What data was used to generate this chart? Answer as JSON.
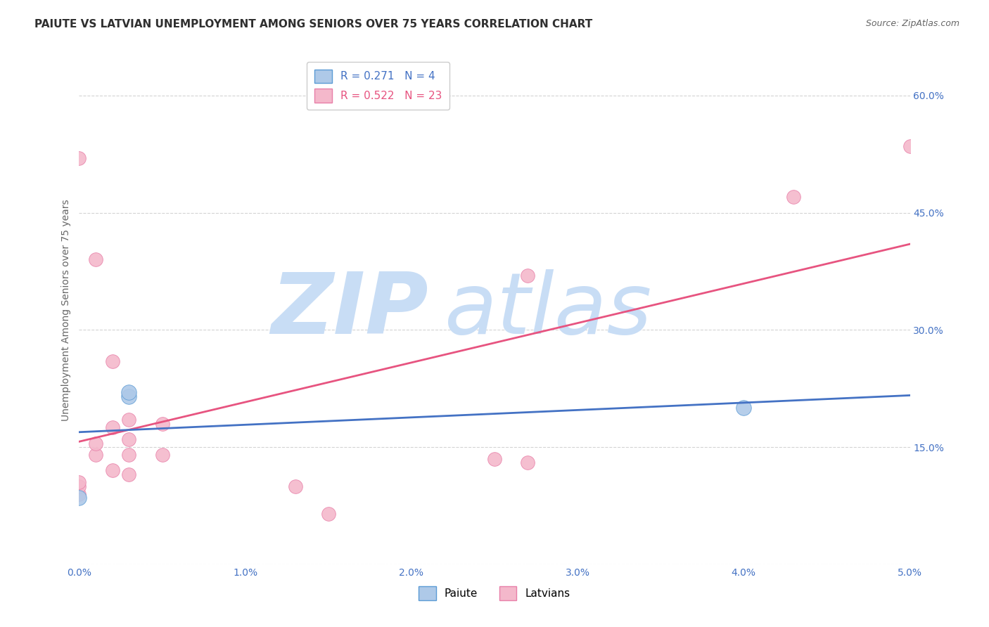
{
  "title": "PAIUTE VS LATVIAN UNEMPLOYMENT AMONG SENIORS OVER 75 YEARS CORRELATION CHART",
  "source": "Source: ZipAtlas.com",
  "ylabel_label": "Unemployment Among Seniors over 75 years",
  "xlim": [
    0.0,
    0.05
  ],
  "ylim": [
    0.0,
    0.65
  ],
  "x_ticks": [
    0.0,
    0.01,
    0.02,
    0.03,
    0.04,
    0.05
  ],
  "x_tick_labels": [
    "0.0%",
    "1.0%",
    "2.0%",
    "3.0%",
    "4.0%",
    "5.0%"
  ],
  "y_ticks": [
    0.0,
    0.15,
    0.3,
    0.45,
    0.6
  ],
  "y_tick_labels": [
    "",
    "15.0%",
    "30.0%",
    "45.0%",
    "60.0%"
  ],
  "paiute_color": "#aec9e8",
  "latvian_color": "#f4b8cb",
  "paiute_edge_color": "#5b9bd5",
  "latvian_edge_color": "#e87fa8",
  "paiute_line_color": "#4472c4",
  "latvian_line_color": "#e75480",
  "legend_paiute_R": "0.271",
  "legend_paiute_N": "4",
  "legend_latvian_R": "0.522",
  "legend_latvian_N": "23",
  "background_color": "#ffffff",
  "grid_color": "#d0d0d0",
  "paiute_points_x": [
    0.0,
    0.003,
    0.003,
    0.04
  ],
  "paiute_points_y": [
    0.085,
    0.215,
    0.22,
    0.2
  ],
  "latvian_points_x": [
    0.0,
    0.0,
    0.0,
    0.0,
    0.001,
    0.001,
    0.001,
    0.002,
    0.002,
    0.002,
    0.003,
    0.003,
    0.003,
    0.003,
    0.005,
    0.005,
    0.013,
    0.015,
    0.025,
    0.027,
    0.027,
    0.043,
    0.05
  ],
  "latvian_points_y": [
    0.09,
    0.1,
    0.105,
    0.52,
    0.14,
    0.155,
    0.39,
    0.12,
    0.175,
    0.26,
    0.115,
    0.14,
    0.16,
    0.185,
    0.14,
    0.18,
    0.1,
    0.065,
    0.135,
    0.37,
    0.13,
    0.47,
    0.535
  ],
  "watermark_zip_color": "#c8ddf5",
  "watermark_atlas_color": "#c8ddf5",
  "title_fontsize": 11,
  "axis_label_fontsize": 10,
  "tick_fontsize": 10,
  "legend_fontsize": 11,
  "tick_color": "#4472c4"
}
